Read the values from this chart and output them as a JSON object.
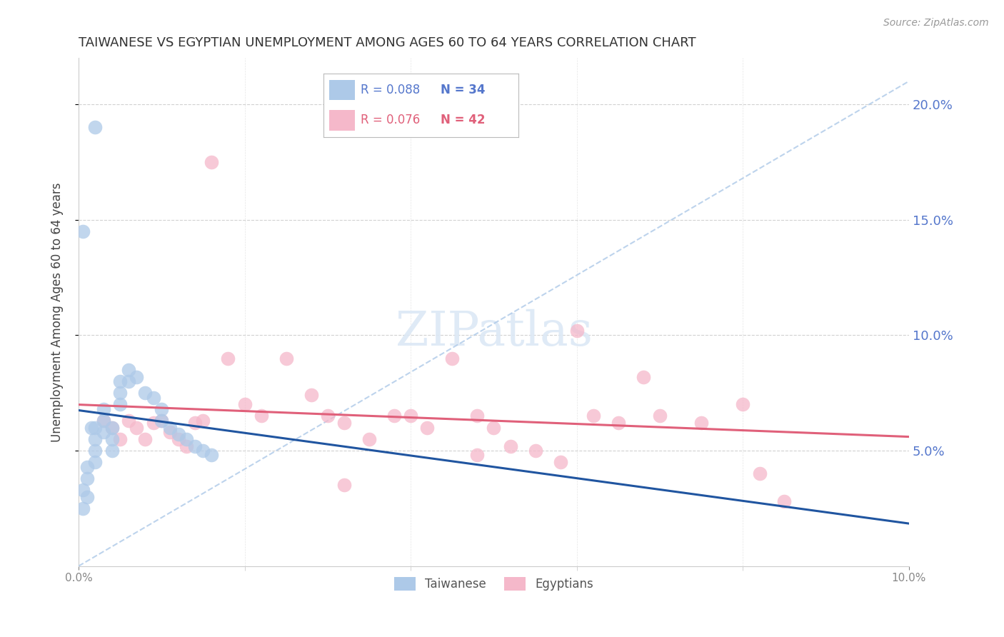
{
  "title": "TAIWANESE VS EGYPTIAN UNEMPLOYMENT AMONG AGES 60 TO 64 YEARS CORRELATION CHART",
  "source": "Source: ZipAtlas.com",
  "ylabel": "Unemployment Among Ages 60 to 64 years",
  "xlim": [
    0.0,
    0.1
  ],
  "ylim": [
    0.0,
    0.22
  ],
  "xticks": [
    0.0,
    0.1
  ],
  "yticks_right": [
    0.05,
    0.1,
    0.15,
    0.2
  ],
  "taiwanese_R": 0.088,
  "taiwanese_N": 34,
  "egyptian_R": 0.076,
  "egyptian_N": 42,
  "taiwanese_color": "#adc9e8",
  "taiwanese_line_color": "#2055a0",
  "egyptian_color": "#f5b8ca",
  "egyptian_line_color": "#e0607a",
  "taiwanese_scatter_x": [
    0.0005,
    0.0005,
    0.001,
    0.001,
    0.001,
    0.0015,
    0.002,
    0.002,
    0.002,
    0.002,
    0.002,
    0.003,
    0.003,
    0.003,
    0.004,
    0.004,
    0.004,
    0.005,
    0.005,
    0.005,
    0.006,
    0.006,
    0.007,
    0.008,
    0.009,
    0.01,
    0.01,
    0.011,
    0.012,
    0.013,
    0.014,
    0.015,
    0.0005,
    0.016
  ],
  "taiwanese_scatter_y": [
    0.033,
    0.025,
    0.043,
    0.038,
    0.03,
    0.06,
    0.19,
    0.06,
    0.055,
    0.05,
    0.045,
    0.068,
    0.063,
    0.058,
    0.06,
    0.055,
    0.05,
    0.08,
    0.075,
    0.07,
    0.085,
    0.08,
    0.082,
    0.075,
    0.073,
    0.068,
    0.063,
    0.06,
    0.057,
    0.055,
    0.052,
    0.05,
    0.145,
    0.048
  ],
  "egyptian_scatter_x": [
    0.003,
    0.004,
    0.005,
    0.006,
    0.007,
    0.008,
    0.009,
    0.01,
    0.011,
    0.012,
    0.013,
    0.014,
    0.015,
    0.016,
    0.018,
    0.02,
    0.022,
    0.025,
    0.028,
    0.03,
    0.032,
    0.035,
    0.038,
    0.04,
    0.042,
    0.045,
    0.048,
    0.05,
    0.052,
    0.055,
    0.058,
    0.06,
    0.062,
    0.065,
    0.068,
    0.07,
    0.075,
    0.08,
    0.082,
    0.085,
    0.048,
    0.032
  ],
  "egyptian_scatter_y": [
    0.063,
    0.06,
    0.055,
    0.063,
    0.06,
    0.055,
    0.062,
    0.063,
    0.058,
    0.055,
    0.052,
    0.062,
    0.063,
    0.175,
    0.09,
    0.07,
    0.065,
    0.09,
    0.074,
    0.065,
    0.062,
    0.055,
    0.065,
    0.065,
    0.06,
    0.09,
    0.065,
    0.06,
    0.052,
    0.05,
    0.045,
    0.102,
    0.065,
    0.062,
    0.082,
    0.065,
    0.062,
    0.07,
    0.04,
    0.028,
    0.048,
    0.035
  ],
  "background_color": "#ffffff",
  "grid_color": "#cccccc",
  "title_fontsize": 13,
  "right_tick_color": "#5577cc",
  "bottom_tick_color": "#888888"
}
